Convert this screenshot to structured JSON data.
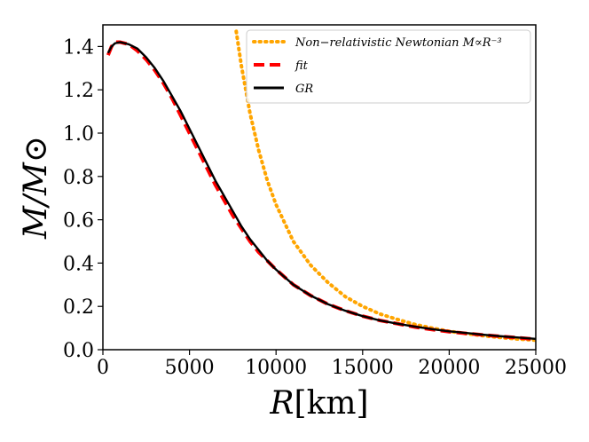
{
  "chart_data": {
    "type": "line",
    "title": "",
    "xlabel": "R[km]",
    "ylabel": "M/M⊙",
    "xlim": [
      0,
      25000
    ],
    "ylim": [
      0.0,
      1.5
    ],
    "x_ticks": [
      0,
      5000,
      10000,
      15000,
      20000,
      25000
    ],
    "x_tick_labels": [
      "0",
      "5000",
      "10000",
      "15000",
      "20000",
      "25000"
    ],
    "y_ticks": [
      0.0,
      0.2,
      0.4,
      0.6,
      0.8,
      1.0,
      1.2,
      1.4
    ],
    "y_tick_labels": [
      "0.0",
      "0.2",
      "0.4",
      "0.6",
      "0.8",
      "1.0",
      "1.2",
      "1.4"
    ],
    "grid": false,
    "legend_position": "top-right",
    "series": [
      {
        "name": "Non−relativistic Newtonian M∝R⁻³",
        "style": "dotted",
        "color": "#FFA500",
        "x": [
          7700,
          8000,
          8500,
          9000,
          9500,
          10000,
          11000,
          12000,
          13000,
          14000,
          15000,
          16000,
          17000,
          18000,
          19000,
          20000,
          21000,
          22000,
          23000,
          24000,
          25000
        ],
        "y": [
          1.47,
          1.31,
          1.09,
          0.92,
          0.78,
          0.67,
          0.5,
          0.39,
          0.31,
          0.245,
          0.2,
          0.165,
          0.14,
          0.117,
          0.1,
          0.085,
          0.074,
          0.064,
          0.056,
          0.049,
          0.044
        ]
      },
      {
        "name": "fit",
        "style": "dashed",
        "color": "#FF0000",
        "x": [
          300,
          500,
          700,
          1000,
          1500,
          2000,
          2500,
          3000,
          3500,
          4000,
          4500,
          5000,
          5500,
          6000,
          6500,
          7000,
          7500,
          8000,
          8500,
          9000,
          9500,
          10000,
          11000,
          12000,
          13000,
          14000,
          15000,
          16000,
          17000,
          18000,
          19000,
          20000,
          21000,
          22000,
          23000,
          24000,
          25000
        ],
        "y": [
          1.36,
          1.4,
          1.42,
          1.42,
          1.41,
          1.38,
          1.34,
          1.29,
          1.23,
          1.16,
          1.08,
          1.0,
          0.92,
          0.84,
          0.76,
          0.69,
          0.62,
          0.56,
          0.5,
          0.45,
          0.41,
          0.37,
          0.3,
          0.25,
          0.21,
          0.18,
          0.155,
          0.135,
          0.12,
          0.105,
          0.093,
          0.083,
          0.075,
          0.068,
          0.061,
          0.055,
          0.048
        ]
      },
      {
        "name": "GR",
        "style": "solid",
        "color": "#000000",
        "x": [
          300,
          500,
          700,
          1000,
          1500,
          2000,
          2500,
          3000,
          3500,
          4000,
          4500,
          5000,
          5500,
          6000,
          6500,
          7000,
          7500,
          8000,
          8500,
          9000,
          9500,
          10000,
          11000,
          12000,
          13000,
          14000,
          15000,
          16000,
          17000,
          18000,
          19000,
          20000,
          21000,
          22000,
          23000,
          24000,
          25000
        ],
        "y": [
          1.37,
          1.4,
          1.415,
          1.42,
          1.41,
          1.39,
          1.35,
          1.3,
          1.24,
          1.17,
          1.1,
          1.02,
          0.94,
          0.86,
          0.78,
          0.71,
          0.64,
          0.57,
          0.51,
          0.46,
          0.41,
          0.37,
          0.3,
          0.25,
          0.21,
          0.18,
          0.155,
          0.135,
          0.12,
          0.107,
          0.095,
          0.085,
          0.077,
          0.069,
          0.062,
          0.056,
          0.05
        ]
      }
    ]
  }
}
